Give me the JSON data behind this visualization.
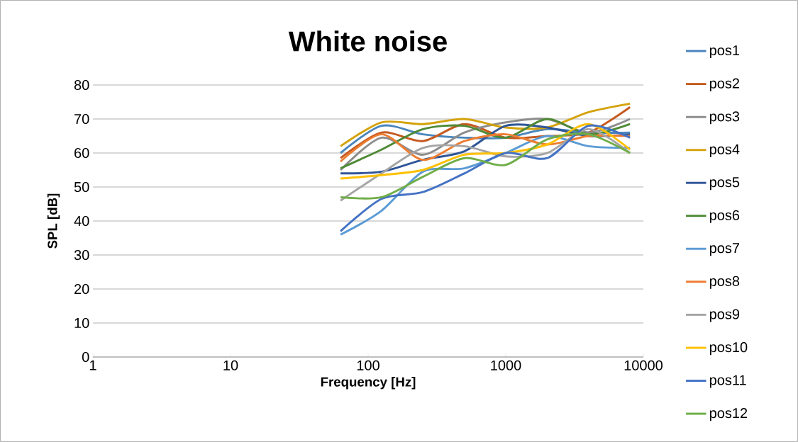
{
  "chart_data": {
    "type": "line",
    "title": "White noise",
    "xlabel": "Frequency [Hz]",
    "ylabel": "SPL [dB]",
    "log": "x",
    "grid": "y",
    "legend": "right",
    "marker": "none",
    "line_style": "solid",
    "x": [
      63,
      125,
      250,
      500,
      1000,
      2000,
      4000,
      8000
    ],
    "xlim": [
      1,
      10000
    ],
    "xticks": [
      1,
      10,
      100,
      1000,
      10000
    ],
    "ylim": [
      0,
      80
    ],
    "yticks": [
      0,
      10,
      20,
      30,
      40,
      50,
      60,
      70,
      80
    ],
    "series": [
      {
        "name": "pos1",
        "color": "#4a86bd",
        "values": [
          60,
          68,
          65.5,
          64.5,
          64.5,
          67,
          66,
          66
        ]
      },
      {
        "name": "pos2",
        "color": "#c55a20",
        "values": [
          58.5,
          66,
          63.5,
          68.5,
          64.5,
          65,
          66,
          73.5
        ]
      },
      {
        "name": "pos3",
        "color": "#8c8c8c",
        "values": [
          55,
          64.5,
          59.5,
          66,
          69,
          70,
          66,
          70
        ]
      },
      {
        "name": "pos4",
        "color": "#d4a20a",
        "values": [
          62,
          69,
          68.5,
          70,
          67.5,
          67.5,
          72,
          74.5
        ]
      },
      {
        "name": "pos5",
        "color": "#2f5597",
        "values": [
          54,
          54.5,
          58,
          60.5,
          68,
          67.5,
          65,
          65.5
        ]
      },
      {
        "name": "pos6",
        "color": "#4e8a35",
        "values": [
          55.5,
          61,
          67,
          68,
          64.5,
          70,
          65.5,
          68.5
        ]
      },
      {
        "name": "pos7",
        "color": "#5b9bd5",
        "values": [
          36,
          43,
          54.5,
          55.5,
          60,
          65,
          62,
          61.5
        ]
      },
      {
        "name": "pos8",
        "color": "#ed7d31",
        "values": [
          57.5,
          65.5,
          58,
          63.5,
          65.5,
          62.5,
          65,
          65
        ]
      },
      {
        "name": "pos9",
        "color": "#a5a5a5",
        "values": [
          46,
          54,
          61.5,
          62,
          59,
          60,
          67,
          60
        ]
      },
      {
        "name": "pos10",
        "color": "#ffc000",
        "values": [
          52.5,
          53.5,
          55,
          59.5,
          60,
          62.5,
          68.5,
          61
        ]
      },
      {
        "name": "pos11",
        "color": "#4472c4",
        "values": [
          37,
          46.5,
          48.5,
          54,
          60,
          58.5,
          68,
          64.5
        ]
      },
      {
        "name": "pos12",
        "color": "#70ad47",
        "values": [
          47,
          47,
          53,
          58.5,
          56.5,
          64,
          65.5,
          60
        ]
      }
    ]
  }
}
